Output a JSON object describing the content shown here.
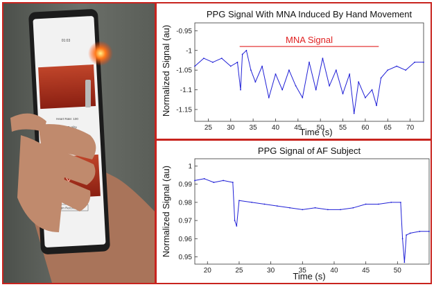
{
  "photo": {
    "app_time": "01:03",
    "heart_rate": "Heart Rate: 100",
    "signal_quality": "Signal Quality",
    "start_button": "Start Recording",
    "bottom_button": "Begin Recording"
  },
  "chart_data": [
    {
      "type": "line",
      "title": "PPG Signal With MNA Induced By Hand Movement",
      "xlabel": "Time (s)",
      "ylabel": "Normalized Signal (au)",
      "xlim": [
        22,
        73
      ],
      "ylim": [
        -1.18,
        -0.93
      ],
      "xticks": [
        25,
        30,
        35,
        40,
        45,
        50,
        55,
        60,
        65,
        70
      ],
      "yticks": [
        -0.95,
        -1,
        -1.05,
        -1.1,
        -1.15
      ],
      "line_color": "#1f1fd6",
      "annotation": {
        "text": "MNA Signal",
        "color": "#e02020",
        "x_start": 32,
        "x_end": 63,
        "y": -0.99
      },
      "x": [
        22,
        24,
        26,
        28,
        30,
        31.5,
        32.2,
        32.6,
        33.5,
        34.5,
        35.5,
        37,
        38.5,
        40,
        41.5,
        43,
        44.5,
        46,
        47.5,
        49,
        50.5,
        52,
        53.5,
        55,
        56.5,
        57.5,
        58.5,
        60,
        61.5,
        62.5,
        63.5,
        65,
        67,
        69,
        71,
        73
      ],
      "y": [
        -1.04,
        -1.02,
        -1.03,
        -1.02,
        -1.04,
        -1.03,
        -1.1,
        -1.01,
        -1.0,
        -1.05,
        -1.08,
        -1.04,
        -1.12,
        -1.06,
        -1.1,
        -1.05,
        -1.09,
        -1.12,
        -1.03,
        -1.1,
        -1.02,
        -1.09,
        -1.05,
        -1.11,
        -1.06,
        -1.16,
        -1.08,
        -1.12,
        -1.1,
        -1.14,
        -1.07,
        -1.05,
        -1.04,
        -1.05,
        -1.03,
        -1.03
      ]
    },
    {
      "type": "line",
      "title": "PPG Signal of AF Subject",
      "xlabel": "Time (s)",
      "ylabel": "Normalized Signal (au)",
      "xlim": [
        18,
        55
      ],
      "ylim": [
        0.946,
        1.004
      ],
      "xticks": [
        20,
        25,
        30,
        35,
        40,
        45,
        50
      ],
      "yticks": [
        1,
        0.99,
        0.98,
        0.97,
        0.96,
        0.95
      ],
      "line_color": "#1f1fd6",
      "x": [
        18,
        19.5,
        21,
        22.5,
        24,
        24.3,
        24.6,
        25,
        27,
        29,
        31,
        33,
        35,
        37,
        39,
        41,
        43,
        45,
        47,
        49,
        50.5,
        50.8,
        51.1,
        51.4,
        52,
        53.5,
        55
      ],
      "y": [
        0.992,
        0.993,
        0.991,
        0.992,
        0.991,
        0.97,
        0.967,
        0.981,
        0.98,
        0.979,
        0.978,
        0.977,
        0.976,
        0.977,
        0.976,
        0.976,
        0.977,
        0.979,
        0.979,
        0.98,
        0.98,
        0.96,
        0.947,
        0.962,
        0.963,
        0.964,
        0.964
      ]
    }
  ]
}
